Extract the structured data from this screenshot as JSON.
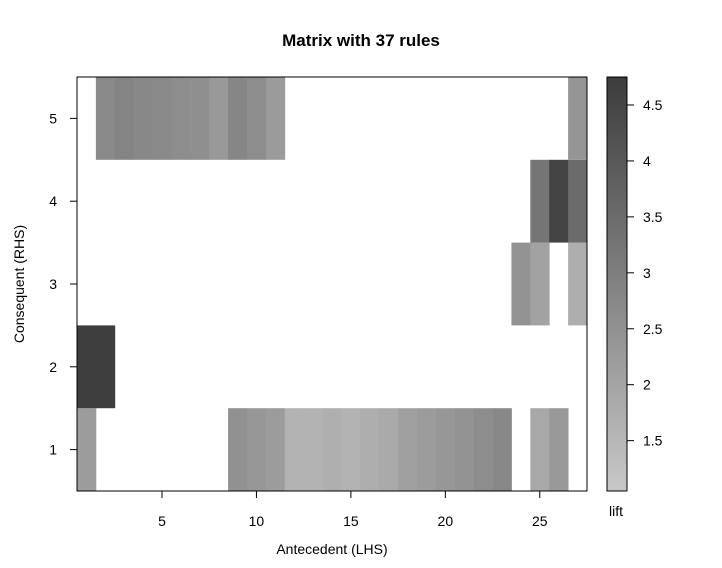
{
  "chart_data": {
    "type": "heatmap",
    "title": "Matrix with 37 rules",
    "xlabel": "Antecedent (LHS)",
    "ylabel": "Consequent (RHS)",
    "xlim": [
      0.5,
      27.5
    ],
    "ylim": [
      0.5,
      5.5
    ],
    "x_ticks": [
      5,
      10,
      15,
      20,
      25
    ],
    "y_ticks": [
      1,
      2,
      3,
      4,
      5
    ],
    "colorbar": {
      "label": "lift",
      "range": [
        1.05,
        4.75
      ],
      "ticks": [
        1.5,
        2,
        2.5,
        3,
        3.5,
        4,
        4.5
      ],
      "tick_labels": [
        "1.5",
        "2",
        "2.5",
        "3",
        "3.5",
        "4",
        "4.5"
      ],
      "color_low": "#c8c8c8",
      "color_high": "#3c3c3c"
    },
    "cells": [
      {
        "x": 1,
        "y": 1,
        "lift": 2.2
      },
      {
        "x": 1,
        "y": 2,
        "lift": 4.7
      },
      {
        "x": 2,
        "y": 2,
        "lift": 4.7
      },
      {
        "x": 2,
        "y": 5,
        "lift": 2.7
      },
      {
        "x": 3,
        "y": 5,
        "lift": 2.85
      },
      {
        "x": 4,
        "y": 5,
        "lift": 2.75
      },
      {
        "x": 5,
        "y": 5,
        "lift": 2.7
      },
      {
        "x": 6,
        "y": 5,
        "lift": 2.6
      },
      {
        "x": 7,
        "y": 5,
        "lift": 2.55
      },
      {
        "x": 8,
        "y": 5,
        "lift": 2.3
      },
      {
        "x": 9,
        "y": 5,
        "lift": 2.8
      },
      {
        "x": 10,
        "y": 5,
        "lift": 2.6
      },
      {
        "x": 11,
        "y": 5,
        "lift": 2.25
      },
      {
        "x": 9,
        "y": 1,
        "lift": 2.5
      },
      {
        "x": 10,
        "y": 1,
        "lift": 2.35
      },
      {
        "x": 11,
        "y": 1,
        "lift": 2.2
      },
      {
        "x": 12,
        "y": 1,
        "lift": 1.6
      },
      {
        "x": 13,
        "y": 1,
        "lift": 1.6
      },
      {
        "x": 14,
        "y": 1,
        "lift": 1.7
      },
      {
        "x": 15,
        "y": 1,
        "lift": 1.6
      },
      {
        "x": 16,
        "y": 1,
        "lift": 1.75
      },
      {
        "x": 17,
        "y": 1,
        "lift": 1.85
      },
      {
        "x": 18,
        "y": 1,
        "lift": 2.1
      },
      {
        "x": 19,
        "y": 1,
        "lift": 2.2
      },
      {
        "x": 20,
        "y": 1,
        "lift": 2.35
      },
      {
        "x": 21,
        "y": 1,
        "lift": 2.45
      },
      {
        "x": 22,
        "y": 1,
        "lift": 2.6
      },
      {
        "x": 23,
        "y": 1,
        "lift": 2.75
      },
      {
        "x": 25,
        "y": 1,
        "lift": 1.9
      },
      {
        "x": 26,
        "y": 1,
        "lift": 2.3
      },
      {
        "x": 24,
        "y": 3,
        "lift": 2.45
      },
      {
        "x": 25,
        "y": 3,
        "lift": 2.05
      },
      {
        "x": 27,
        "y": 3,
        "lift": 1.75
      },
      {
        "x": 25,
        "y": 4,
        "lift": 3.25
      },
      {
        "x": 26,
        "y": 4,
        "lift": 4.55
      },
      {
        "x": 27,
        "y": 4,
        "lift": 3.5
      },
      {
        "x": 27,
        "y": 5,
        "lift": 2.4
      }
    ]
  }
}
